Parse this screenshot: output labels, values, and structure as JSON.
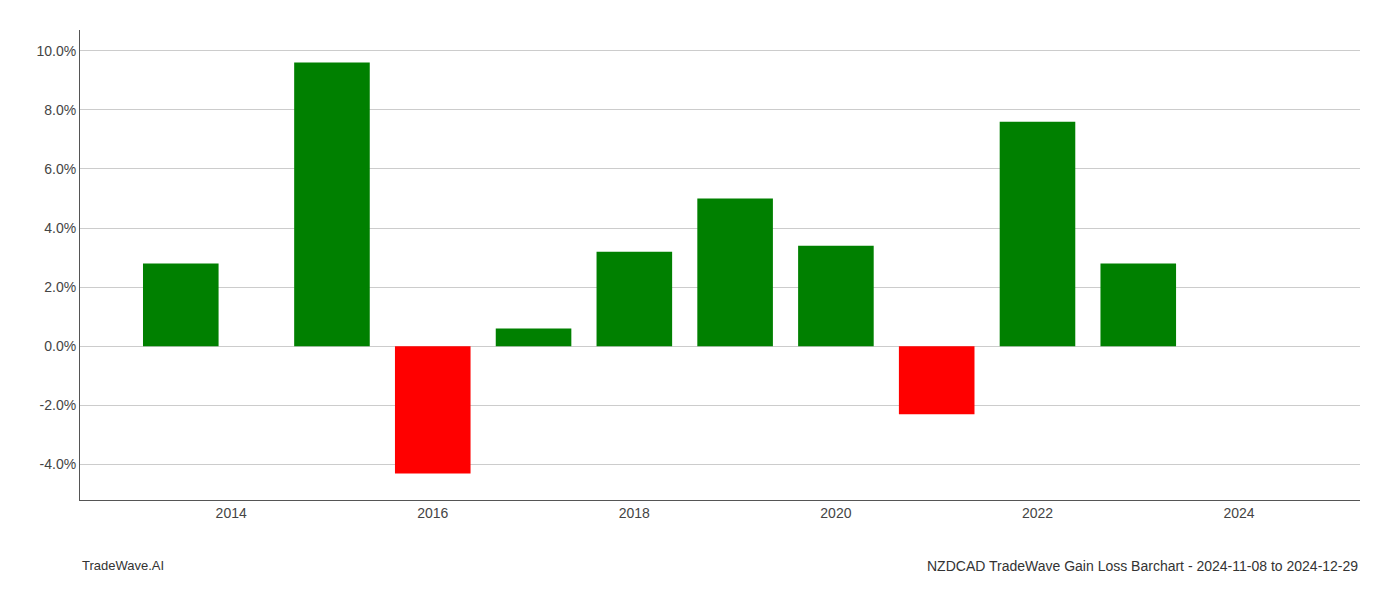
{
  "chart_data": {
    "type": "bar",
    "title": "NZDCAD TradeWave Gain Loss Barchart - 2024-11-08 to 2024-12-29",
    "annotations": [
      "TradeWave.AI"
    ],
    "x": [
      2013.5,
      2015.0,
      2016.0,
      2017.0,
      2018.0,
      2019.0,
      2020.0,
      2021.0,
      2022.0,
      2023.0
    ],
    "values": [
      0.028,
      0.096,
      -0.043,
      0.006,
      0.032,
      0.05,
      0.034,
      -0.023,
      0.076,
      0.028
    ],
    "colors": [
      "#008000",
      "#008000",
      "#ff0000",
      "#008000",
      "#008000",
      "#008000",
      "#008000",
      "#ff0000",
      "#008000",
      "#008000"
    ],
    "xlim": [
      2012.5,
      2025.2
    ],
    "xticks": [
      2014,
      2016,
      2018,
      2020,
      2022,
      2024
    ],
    "ylim": [
      -0.052,
      0.107
    ],
    "yticks": [
      {
        "value": -0.04,
        "label": "-4.0%"
      },
      {
        "value": -0.02,
        "label": "-2.0%"
      },
      {
        "value": 0.0,
        "label": "0.0%"
      },
      {
        "value": 0.02,
        "label": "2.0%"
      },
      {
        "value": 0.04,
        "label": "4.0%"
      },
      {
        "value": 0.06,
        "label": "6.0%"
      },
      {
        "value": 0.08,
        "label": "8.0%"
      },
      {
        "value": 0.1,
        "label": "10.0%"
      }
    ],
    "grid": true
  }
}
